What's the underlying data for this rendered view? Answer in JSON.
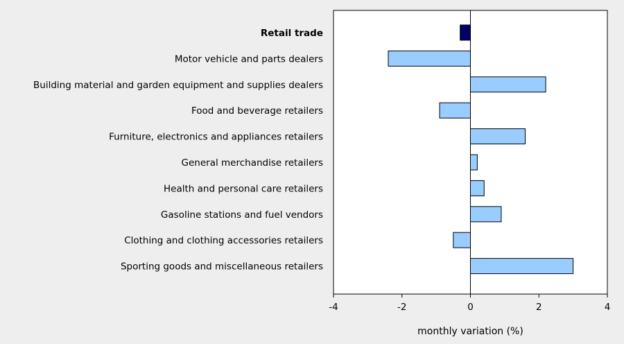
{
  "chart_data": {
    "type": "bar",
    "orientation": "horizontal",
    "title": "",
    "xlabel": "monthly variation (%)",
    "ylabel": "",
    "xlim": [
      -4,
      4
    ],
    "xticks": [
      -4,
      -2,
      0,
      2,
      4
    ],
    "grid": false,
    "legend": "none",
    "categories": [
      "Retail trade",
      "Motor vehicle and parts dealers",
      "Building material and garden equipment and supplies dealers",
      "Food and beverage retailers",
      "Furniture, electronics and appliances retailers",
      "General merchandise retailers",
      "Health and personal care retailers",
      "Gasoline stations and fuel vendors",
      "Clothing and clothing accessories retailers",
      "Sporting goods and miscellaneous retailers"
    ],
    "values": [
      -0.3,
      -2.4,
      2.2,
      -0.9,
      1.6,
      0.2,
      0.4,
      0.9,
      -0.5,
      3.0
    ],
    "highlight_index": 0,
    "colors": {
      "bar": "#99ccff",
      "highlight": "#000066",
      "stroke": "#000000",
      "plot_bg": "#ffffff",
      "page_bg": "#eeeeee"
    }
  }
}
